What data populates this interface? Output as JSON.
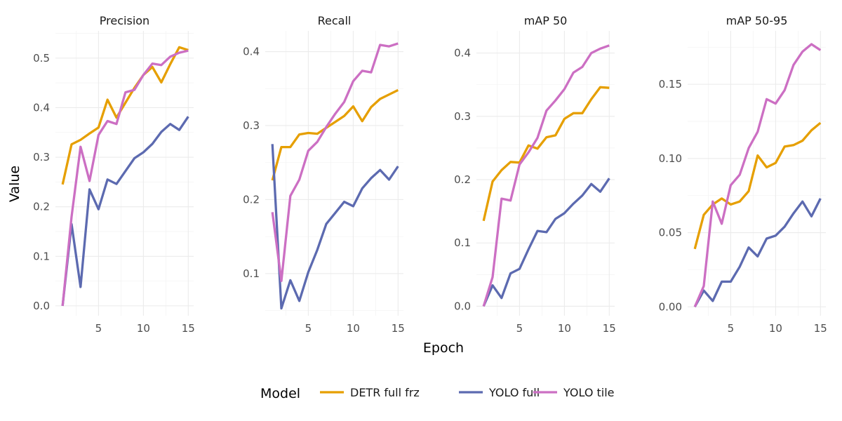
{
  "chart_data": {
    "type": "line",
    "xlabel": "Epoch",
    "ylabel": "Value",
    "legend": {
      "title": "Model",
      "position": "bottom"
    },
    "x": [
      1,
      2,
      3,
      4,
      5,
      6,
      7,
      8,
      9,
      10,
      11,
      12,
      13,
      14,
      15
    ],
    "xticks": [
      5,
      10,
      15
    ],
    "xlim": [
      0.2,
      15.6
    ],
    "grid": true,
    "series_styles": [
      {
        "name": "DETR full frz",
        "color": "#E69F00"
      },
      {
        "name": "YOLO full",
        "color": "#5C6AB0"
      },
      {
        "name": "YOLO tile",
        "color": "#CC6FC3"
      }
    ],
    "panels": [
      {
        "title": "Precision",
        "ylim": [
          -0.02,
          0.555
        ],
        "yticks": [
          0.0,
          0.1,
          0.2,
          0.3,
          0.4,
          0.5
        ],
        "ytick_labels": [
          "0.0",
          "0.1",
          "0.2",
          "0.3",
          "0.4",
          "0.5"
        ],
        "series": [
          {
            "name": "DETR full frz",
            "values": [
              0.245,
              0.326,
              0.335,
              0.348,
              0.36,
              0.416,
              0.38,
              0.41,
              0.44,
              0.466,
              0.482,
              0.451,
              0.488,
              0.522,
              0.516
            ]
          },
          {
            "name": "YOLO full",
            "values": [
              0.0,
              0.165,
              0.038,
              0.235,
              0.195,
              0.255,
              0.246,
              0.272,
              0.298,
              0.31,
              0.327,
              0.351,
              0.367,
              0.355,
              0.382
            ]
          },
          {
            "name": "YOLO tile",
            "values": [
              0.0,
              0.18,
              0.321,
              0.252,
              0.345,
              0.373,
              0.367,
              0.431,
              0.436,
              0.466,
              0.489,
              0.486,
              0.503,
              0.511,
              0.515
            ]
          }
        ]
      },
      {
        "title": "Recall",
        "ylim": [
          0.043,
          0.428
        ],
        "yticks": [
          0.1,
          0.2,
          0.3,
          0.4
        ],
        "ytick_labels": [
          "0.1",
          "0.2",
          "0.3",
          "0.4"
        ],
        "series": [
          {
            "name": "DETR full frz",
            "values": [
              0.226,
              0.271,
              0.271,
              0.288,
              0.29,
              0.289,
              0.297,
              0.305,
              0.313,
              0.326,
              0.306,
              0.325,
              0.336,
              0.342,
              0.348
            ]
          },
          {
            "name": "YOLO full",
            "values": [
              0.275,
              0.053,
              0.091,
              0.063,
              0.102,
              0.132,
              0.167,
              0.182,
              0.197,
              0.191,
              0.215,
              0.229,
              0.24,
              0.227,
              0.245
            ]
          },
          {
            "name": "YOLO tile",
            "values": [
              0.183,
              0.09,
              0.205,
              0.227,
              0.266,
              0.278,
              0.298,
              0.316,
              0.332,
              0.36,
              0.374,
              0.372,
              0.409,
              0.407,
              0.411
            ]
          }
        ]
      },
      {
        "title": "mAP 50",
        "ylim": [
          -0.015,
          0.435
        ],
        "yticks": [
          0.0,
          0.1,
          0.2,
          0.3,
          0.4
        ],
        "ytick_labels": [
          "0.0",
          "0.1",
          "0.2",
          "0.3",
          "0.4"
        ],
        "series": [
          {
            "name": "DETR full frz",
            "values": [
              0.135,
              0.197,
              0.215,
              0.228,
              0.227,
              0.254,
              0.249,
              0.267,
              0.27,
              0.296,
              0.305,
              0.305,
              0.327,
              0.346,
              0.345
            ]
          },
          {
            "name": "YOLO full",
            "values": [
              0.0,
              0.033,
              0.013,
              0.052,
              0.059,
              0.09,
              0.119,
              0.117,
              0.138,
              0.147,
              0.162,
              0.175,
              0.193,
              0.181,
              0.202
            ]
          },
          {
            "name": "YOLO tile",
            "values": [
              0.0,
              0.046,
              0.17,
              0.167,
              0.224,
              0.243,
              0.266,
              0.309,
              0.325,
              0.343,
              0.369,
              0.378,
              0.4,
              0.407,
              0.412
            ]
          }
        ]
      },
      {
        "title": "mAP 50-95",
        "ylim": [
          -0.006,
          0.186
        ],
        "yticks": [
          0.0,
          0.05,
          0.1,
          0.15
        ],
        "ytick_labels": [
          "0.00",
          "0.05",
          "0.10",
          "0.15"
        ],
        "series": [
          {
            "name": "DETR full frz",
            "values": [
              0.039,
              0.062,
              0.069,
              0.073,
              0.069,
              0.071,
              0.078,
              0.102,
              0.094,
              0.097,
              0.108,
              0.109,
              0.112,
              0.119,
              0.124
            ]
          },
          {
            "name": "YOLO full",
            "values": [
              0.0,
              0.011,
              0.004,
              0.017,
              0.017,
              0.027,
              0.04,
              0.034,
              0.046,
              0.048,
              0.054,
              0.063,
              0.071,
              0.061,
              0.073
            ]
          },
          {
            "name": "YOLO tile",
            "values": [
              0.0,
              0.014,
              0.071,
              0.056,
              0.082,
              0.089,
              0.107,
              0.118,
              0.14,
              0.137,
              0.146,
              0.163,
              0.172,
              0.177,
              0.173
            ]
          }
        ]
      }
    ]
  }
}
